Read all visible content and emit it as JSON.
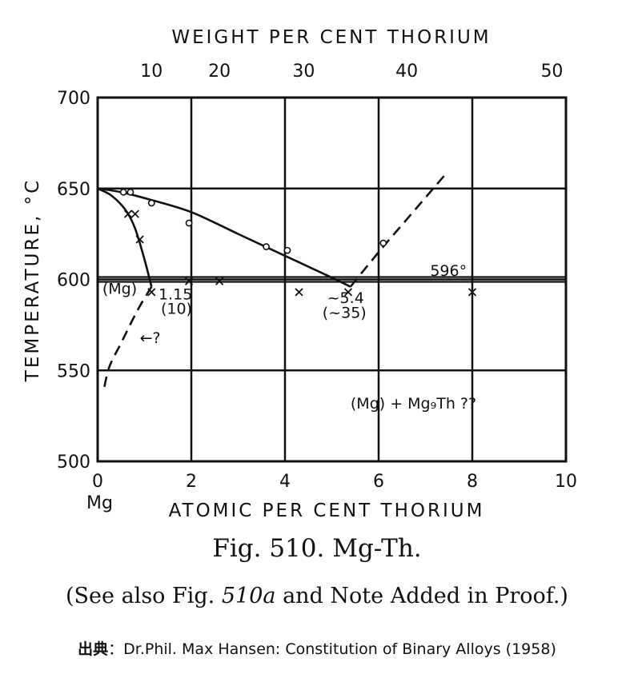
{
  "chart_data": {
    "type": "line",
    "title": "Fig. 510. Mg-Th.",
    "note_parts": [
      "(See also Fig. ",
      "510a",
      " and Note Added in Proof.)"
    ],
    "source_label": "出典",
    "source_text": "：Dr.Phil. Max Hansen: Constitution of Binary Alloys (1958)",
    "xlabel": "ATOMIC PER CENT THORIUM",
    "x2label": "WEIGHT PER CENT THORIUM",
    "ylabel": "TEMPERATURE, °C",
    "xlim": [
      0,
      10
    ],
    "ylim": [
      500,
      700
    ],
    "x_ticks": [
      "0",
      "2",
      "4",
      "6",
      "8",
      "10"
    ],
    "x_sublabel": "Mg",
    "y_ticks": [
      "500",
      "550",
      "600",
      "650",
      "700"
    ],
    "x2_ticks": [
      "10",
      "20",
      "30",
      "40",
      "50"
    ],
    "x2_tick_positions": [
      1.15,
      2.6,
      4.4,
      6.6,
      9.7
    ],
    "grid": true,
    "series": [
      {
        "style": "solid",
        "points": [
          [
            0,
            650
          ],
          [
            0.5,
            648
          ],
          [
            1.1,
            644
          ],
          [
            2,
            637
          ],
          [
            3,
            625
          ],
          [
            4,
            613
          ],
          [
            5,
            601
          ],
          [
            5.4,
            596
          ]
        ]
      },
      {
        "style": "solid",
        "points": [
          [
            0,
            650
          ],
          [
            0.3,
            646
          ],
          [
            0.6,
            638
          ],
          [
            0.8,
            628
          ],
          [
            1,
            611
          ],
          [
            1.15,
            596
          ]
        ]
      },
      {
        "style": "dashed",
        "points": [
          [
            1.15,
            596
          ],
          [
            0.85,
            583
          ],
          [
            0.5,
            565
          ],
          [
            0.25,
            552
          ],
          [
            0.12,
            538
          ]
        ]
      },
      {
        "style": "dashed",
        "points": [
          [
            5.4,
            596
          ],
          [
            6,
            615
          ],
          [
            6.6,
            633
          ],
          [
            7.4,
            657
          ]
        ]
      },
      {
        "style": "double",
        "points": [
          [
            0,
            600
          ],
          [
            10,
            600
          ]
        ]
      }
    ],
    "markers_o": [
      [
        0.55,
        648
      ],
      [
        0.7,
        648
      ],
      [
        1.15,
        642
      ],
      [
        1.95,
        631
      ],
      [
        3.6,
        618
      ],
      [
        4.05,
        616
      ],
      [
        6.1,
        620
      ]
    ],
    "markers_x": [
      [
        0.65,
        636
      ],
      [
        0.8,
        636
      ],
      [
        0.9,
        622
      ],
      [
        1.15,
        593
      ],
      [
        1.95,
        599
      ],
      [
        2.6,
        599
      ],
      [
        4.3,
        593
      ],
      [
        5.35,
        593
      ],
      [
        8,
        593
      ]
    ],
    "annotations": [
      {
        "text": "596°",
        "x": 7.1,
        "y": 602
      },
      {
        "text": "(Mg)",
        "x": 0.1,
        "y": 592
      },
      {
        "text": "1.15",
        "x": 1.3,
        "y": 589
      },
      {
        "text": "(10)",
        "x": 1.35,
        "y": 581
      },
      {
        "text": "~5.4",
        "x": 4.9,
        "y": 587
      },
      {
        "text": "(~35)",
        "x": 4.8,
        "y": 579
      },
      {
        "text": "←?",
        "x": 0.9,
        "y": 565
      },
      {
        "text": "(Mg) + Mg₉Th ??",
        "x": 5.4,
        "y": 529
      }
    ]
  }
}
